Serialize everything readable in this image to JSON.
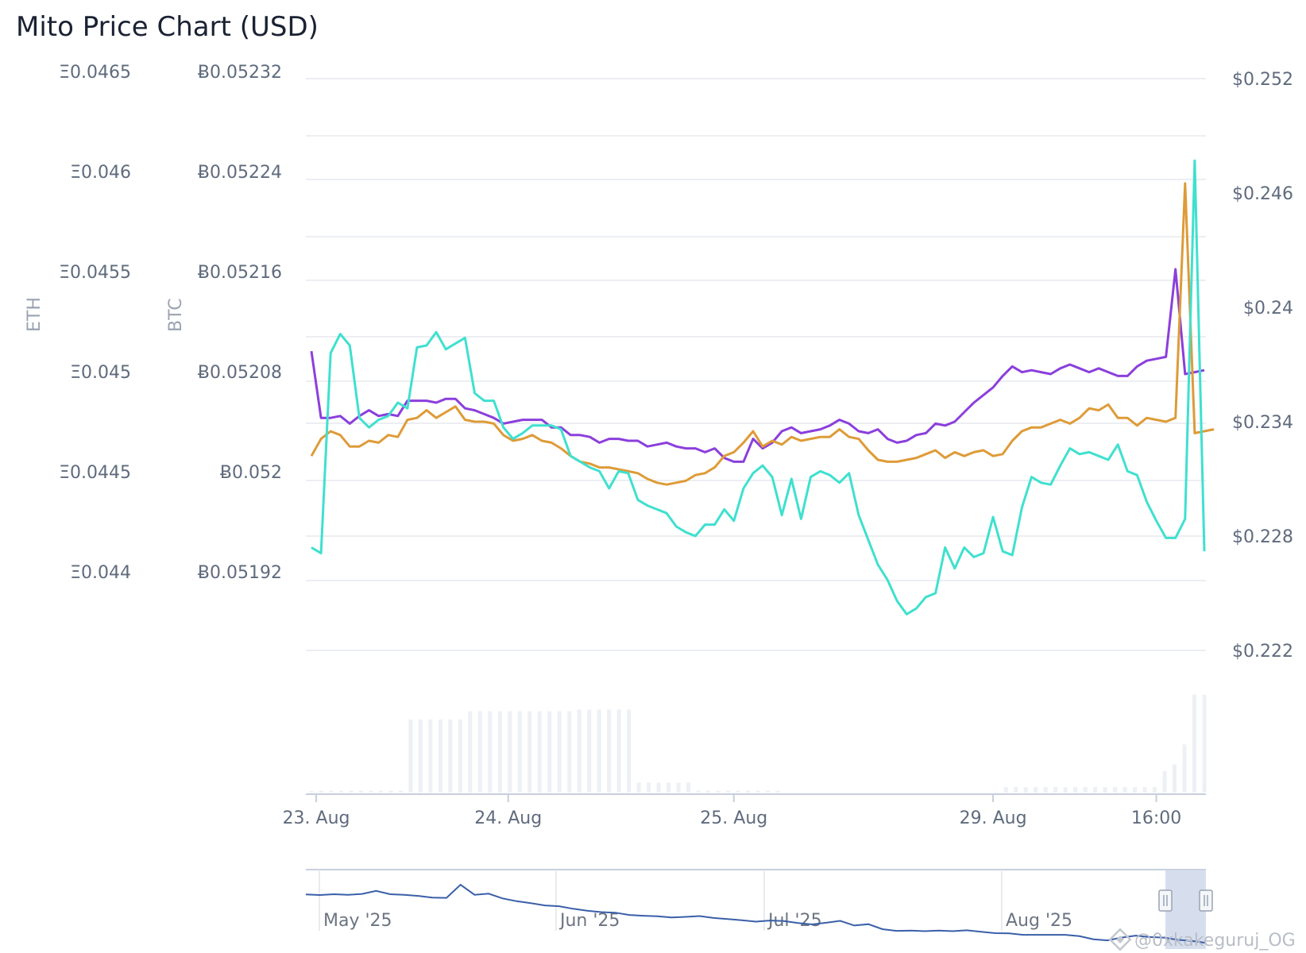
{
  "chart_data": {
    "type": "line",
    "title": "Mito Price Chart (USD)",
    "axes": {
      "eth": {
        "title": "ETH",
        "ticks": [
          "Ξ0.0465",
          "Ξ0.046",
          "Ξ0.0455",
          "Ξ0.045",
          "Ξ0.0445",
          "Ξ0.044"
        ]
      },
      "btc": {
        "title": "BTC",
        "ticks": [
          "Ƀ0.05232",
          "Ƀ0.05224",
          "Ƀ0.05216",
          "Ƀ0.05208",
          "Ƀ0.052",
          "Ƀ0.05192"
        ]
      },
      "usd": {
        "ticks": [
          "$0.252",
          "$0.246",
          "$0.24",
          "$0.234",
          "$0.228",
          "$0.222"
        ],
        "ylim": [
          0.222,
          0.252
        ]
      }
    },
    "x_ticks": [
      "23. Aug",
      "24. Aug",
      "25. Aug",
      "29. Aug",
      "16:00"
    ],
    "x_tick_index": [
      0.5,
      20.5,
      44,
      71,
      88
    ],
    "series": [
      {
        "color": "#8b3fdc",
        "y": [
          0.2377,
          0.2342,
          0.2342,
          0.2343,
          0.2339,
          0.2343,
          0.2346,
          0.2343,
          0.2344,
          0.2343,
          0.2351,
          0.2351,
          0.2351,
          0.235,
          0.2352,
          0.2352,
          0.2347,
          0.2346,
          0.2344,
          0.2342,
          0.2339,
          0.234,
          0.2341,
          0.2341,
          0.2341,
          0.2337,
          0.2337,
          0.2333,
          0.2333,
          0.2332,
          0.2329,
          0.2331,
          0.2331,
          0.233,
          0.233,
          0.2327,
          0.2328,
          0.2329,
          0.2327,
          0.2326,
          0.2326,
          0.2324,
          0.2326,
          0.2321,
          0.2319,
          0.2319,
          0.2331,
          0.2326,
          0.2329,
          0.2335,
          0.2337,
          0.2334,
          0.2335,
          0.2336,
          0.2338,
          0.2341,
          0.2339,
          0.2335,
          0.2334,
          0.2336,
          0.2331,
          0.2329,
          0.233,
          0.2333,
          0.2334,
          0.2339,
          0.2338,
          0.234,
          0.2345,
          0.235,
          0.2354,
          0.2358,
          0.2364,
          0.2369,
          0.2366,
          0.2367,
          0.2366,
          0.2365,
          0.2368,
          0.237,
          0.2368,
          0.2366,
          0.2368,
          0.2366,
          0.2364,
          0.2364,
          0.2369,
          0.2372,
          0.2373,
          0.2374,
          0.242,
          0.2365,
          0.2366,
          0.2367
        ]
      },
      {
        "color": "#de9b38",
        "y": [
          0.2322,
          0.2331,
          0.2335,
          0.2333,
          0.2327,
          0.2327,
          0.233,
          0.2329,
          0.2333,
          0.2332,
          0.2341,
          0.2342,
          0.2346,
          0.2342,
          0.2345,
          0.2348,
          0.2341,
          0.234,
          0.234,
          0.2339,
          0.2333,
          0.233,
          0.2331,
          0.2333,
          0.233,
          0.2329,
          0.2326,
          0.2322,
          0.2319,
          0.2318,
          0.2316,
          0.2316,
          0.2315,
          0.2314,
          0.2313,
          0.231,
          0.2308,
          0.2307,
          0.2308,
          0.2309,
          0.2312,
          0.2313,
          0.2316,
          0.2322,
          0.2324,
          0.2329,
          0.2335,
          0.2327,
          0.233,
          0.2328,
          0.2332,
          0.233,
          0.2331,
          0.2332,
          0.2332,
          0.2336,
          0.2332,
          0.2331,
          0.2325,
          0.232,
          0.2319,
          0.2319,
          0.232,
          0.2321,
          0.2323,
          0.2325,
          0.2321,
          0.2324,
          0.2322,
          0.2324,
          0.2325,
          0.2322,
          0.2323,
          0.233,
          0.2335,
          0.2337,
          0.2337,
          0.2339,
          0.2341,
          0.2339,
          0.2342,
          0.2347,
          0.2346,
          0.2349,
          0.2342,
          0.2342,
          0.2338,
          0.2342,
          0.2341,
          0.234,
          0.2342,
          0.2465,
          0.2334,
          0.2335,
          0.2336
        ]
      },
      {
        "color": "#3fe0cf",
        "y": [
          0.2274,
          0.2271,
          0.2376,
          0.2386,
          0.238,
          0.2342,
          0.2337,
          0.2341,
          0.2343,
          0.235,
          0.2347,
          0.2379,
          0.238,
          0.2387,
          0.2378,
          0.2381,
          0.2384,
          0.2355,
          0.2351,
          0.2351,
          0.2337,
          0.2331,
          0.2334,
          0.2338,
          0.2338,
          0.2338,
          0.2336,
          0.2322,
          0.2319,
          0.2316,
          0.2314,
          0.2305,
          0.2314,
          0.2313,
          0.2299,
          0.2296,
          0.2294,
          0.2292,
          0.2285,
          0.2282,
          0.228,
          0.2286,
          0.2286,
          0.2294,
          0.2288,
          0.2305,
          0.2313,
          0.2317,
          0.2311,
          0.2291,
          0.231,
          0.2289,
          0.2311,
          0.2314,
          0.2312,
          0.2308,
          0.2313,
          0.2291,
          0.2278,
          0.2265,
          0.2257,
          0.2246,
          0.2239,
          0.2242,
          0.2248,
          0.225,
          0.2274,
          0.2263,
          0.2274,
          0.2269,
          0.2271,
          0.229,
          0.2272,
          0.227,
          0.2295,
          0.2311,
          0.2308,
          0.2307,
          0.2317,
          0.2326,
          0.2323,
          0.2324,
          0.2322,
          0.232,
          0.2328,
          0.2314,
          0.2312,
          0.2298,
          0.2288,
          0.2279,
          0.2279,
          0.2289,
          0.2477,
          0.2272
        ]
      }
    ],
    "volume": [
      0.9,
      1.1,
      1.1,
      1.1,
      1.1,
      1.1,
      1.1,
      1.1,
      1.1,
      1.1,
      44,
      44,
      44,
      44,
      44,
      44,
      49,
      49,
      49,
      49,
      49,
      49,
      49,
      49,
      49,
      49,
      49,
      50,
      50,
      50,
      50,
      50,
      50,
      6,
      6,
      6,
      6,
      6,
      6,
      1.2,
      1.2,
      1.2,
      1.2,
      1.2,
      1.2,
      1.2,
      1.2,
      1.2,
      0,
      0,
      0,
      0,
      0,
      0,
      0,
      0,
      0,
      0,
      0,
      0,
      0,
      0,
      0,
      0,
      0,
      0,
      0,
      0,
      0,
      0,
      3.3,
      3.3,
      3.3,
      3.3,
      3.3,
      3.3,
      3.3,
      3.3,
      3.3,
      3.3,
      3.3,
      3.3,
      3.3,
      3.3,
      3.3,
      3.3,
      13,
      17,
      29,
      59,
      59
    ],
    "navigator": {
      "labels": [
        "May '25",
        "Jun '25",
        "Jul '25",
        "Aug '25"
      ],
      "line": [
        0.252,
        0.2518,
        0.2521,
        0.2519,
        0.2522,
        0.2533,
        0.2521,
        0.2519,
        0.2515,
        0.2509,
        0.2508,
        0.2555,
        0.2519,
        0.2523,
        0.2506,
        0.2496,
        0.2489,
        0.2481,
        0.2478,
        0.2469,
        0.2462,
        0.2457,
        0.2455,
        0.2447,
        0.2444,
        0.2442,
        0.2438,
        0.244,
        0.2443,
        0.2436,
        0.2432,
        0.2428,
        0.2423,
        0.2427,
        0.2425,
        0.2418,
        0.2413,
        0.2419,
        0.2426,
        0.2409,
        0.2414,
        0.2396,
        0.239,
        0.2391,
        0.2389,
        0.2391,
        0.2389,
        0.2392,
        0.2387,
        0.2382,
        0.2381,
        0.2376,
        0.2376,
        0.2376,
        0.2376,
        0.2371,
        0.236,
        0.2356,
        0.2366,
        0.2373,
        0.2368,
        0.2366,
        0.2358,
        0.2354,
        0.2347
      ]
    }
  },
  "watermark": "@0xkakeguruj_OG"
}
